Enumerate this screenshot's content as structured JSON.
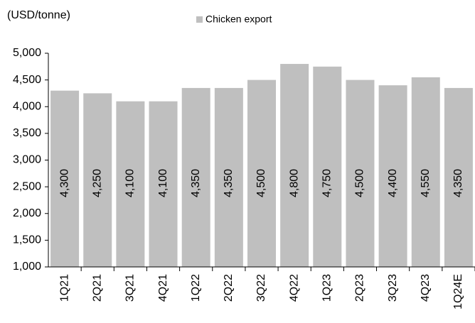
{
  "chart_data": {
    "type": "bar",
    "y_axis_label": "(USD/tonne)",
    "series": [
      {
        "name": "Chicken export",
        "color": "#bfbfbf",
        "values": [
          4300,
          4250,
          4100,
          4100,
          4350,
          4350,
          4500,
          4800,
          4750,
          4500,
          4400,
          4550,
          4350
        ],
        "value_labels": [
          "4,300",
          "4,250",
          "4,100",
          "4,100",
          "4,350",
          "4,350",
          "4,500",
          "4,800",
          "4,750",
          "4,500",
          "4,400",
          "4,550",
          "4,350"
        ]
      }
    ],
    "categories": [
      "1Q21",
      "2Q21",
      "3Q21",
      "4Q21",
      "1Q22",
      "2Q22",
      "3Q22",
      "4Q22",
      "1Q23",
      "2Q23",
      "3Q23",
      "4Q23",
      "1Q24E"
    ],
    "ylim": [
      1000,
      5000
    ],
    "yticks": [
      {
        "value": 1000,
        "label": "1,000"
      },
      {
        "value": 1500,
        "label": "1,500"
      },
      {
        "value": 2000,
        "label": "2,000"
      },
      {
        "value": 2500,
        "label": "2,500"
      },
      {
        "value": 3000,
        "label": "3,000"
      },
      {
        "value": 3500,
        "label": "3,500"
      },
      {
        "value": 4000,
        "label": "4,000"
      },
      {
        "value": 4500,
        "label": "4,500"
      },
      {
        "value": 5000,
        "label": "5,000"
      }
    ],
    "legend": "top"
  }
}
